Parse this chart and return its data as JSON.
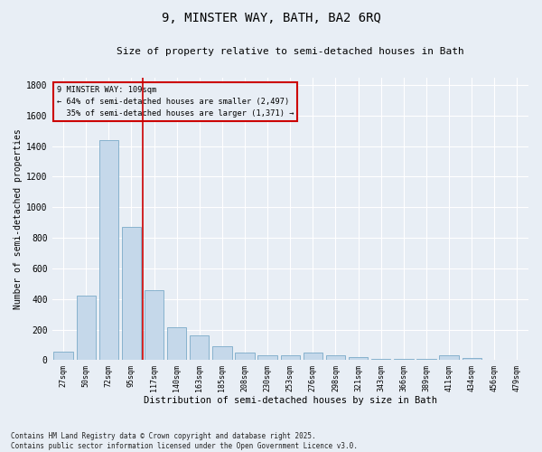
{
  "title": "9, MINSTER WAY, BATH, BA2 6RQ",
  "subtitle": "Size of property relative to semi-detached houses in Bath",
  "xlabel": "Distribution of semi-detached houses by size in Bath",
  "ylabel": "Number of semi-detached properties",
  "categories": [
    "27sqm",
    "50sqm",
    "72sqm",
    "95sqm",
    "117sqm",
    "140sqm",
    "163sqm",
    "185sqm",
    "208sqm",
    "230sqm",
    "253sqm",
    "276sqm",
    "298sqm",
    "321sqm",
    "343sqm",
    "366sqm",
    "389sqm",
    "411sqm",
    "434sqm",
    "456sqm",
    "479sqm"
  ],
  "values": [
    55,
    420,
    1440,
    870,
    460,
    215,
    160,
    90,
    50,
    30,
    30,
    50,
    35,
    20,
    10,
    8,
    8,
    30,
    12,
    5,
    5
  ],
  "bar_color": "#c5d8ea",
  "bar_edge_color": "#7baac8",
  "vline_color": "#cc0000",
  "vline_position": 3.5,
  "property_label": "9 MINSTER WAY: 109sqm",
  "pct_smaller": 64,
  "pct_larger": 35,
  "count_smaller": "2,497",
  "count_larger": "1,371",
  "annotation_box_edgecolor": "#cc0000",
  "ylim": [
    0,
    1850
  ],
  "yticks": [
    0,
    200,
    400,
    600,
    800,
    1000,
    1200,
    1400,
    1600,
    1800
  ],
  "bg_color": "#e8eef5",
  "grid_color": "#ffffff",
  "footer_line1": "Contains HM Land Registry data © Crown copyright and database right 2025.",
  "footer_line2": "Contains public sector information licensed under the Open Government Licence v3.0."
}
